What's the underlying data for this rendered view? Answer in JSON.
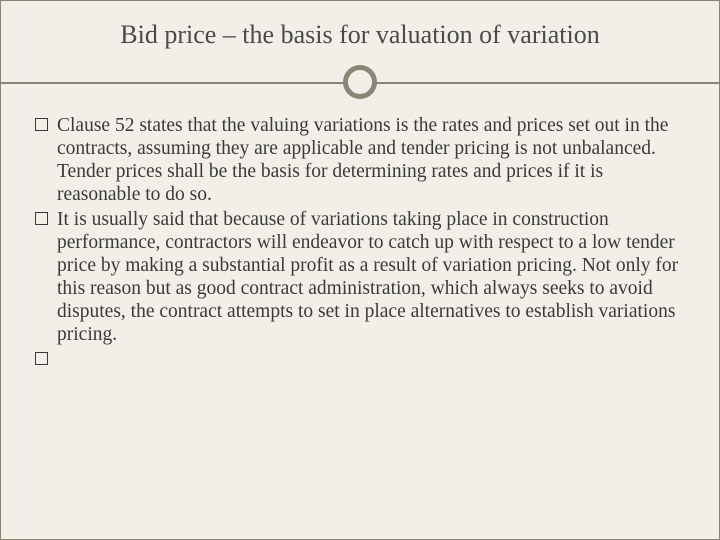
{
  "slide": {
    "title": "Bid price – the basis for valuation of variation",
    "background_color": "#f2efe8",
    "border_color": "#8a8575",
    "title_color": "#4a4a4a",
    "title_fontsize": 26,
    "body_color": "#3a3a3a",
    "body_fontsize": 19.5,
    "divider": {
      "line_color": "#8a8575",
      "circle_border_color": "#8a8575",
      "circle_fill": "#f2efe8",
      "circle_size": 34,
      "circle_border_width": 5
    },
    "bullets": [
      {
        "text": "Clause 52 states that the valuing variations is the rates and prices set out in the contracts, assuming they are applicable and tender pricing is not unbalanced. Tender prices shall be the basis for determining rates and prices if it is reasonable to do so."
      },
      {
        "text": " It is usually said that because of variations taking place in construction performance, contractors will endeavor to catch up with respect to a low tender price by making a substantial profit as a result of variation pricing. Not only for this reason but as good contract administration, which always seeks to avoid disputes, the contract attempts to set in place alternatives to establish variations pricing."
      },
      {
        "text": ""
      }
    ]
  }
}
